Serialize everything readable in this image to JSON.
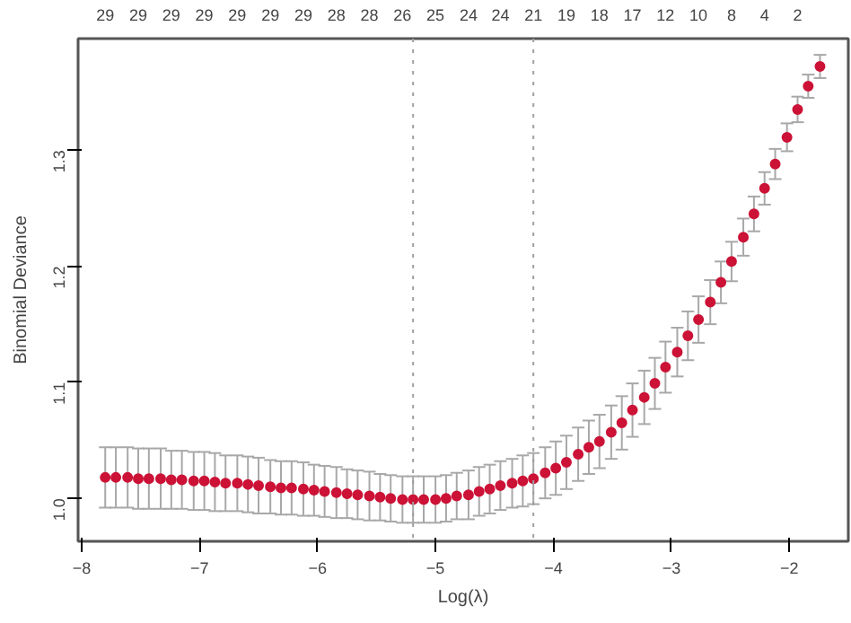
{
  "chart_data": {
    "type": "scatter",
    "xlabel": "Log(λ)",
    "ylabel": "Binomial Deviance",
    "x": [
      -7.8,
      -7.71,
      -7.61,
      -7.52,
      -7.43,
      -7.33,
      -7.24,
      -7.15,
      -7.05,
      -6.96,
      -6.87,
      -6.78,
      -6.68,
      -6.59,
      -6.5,
      -6.4,
      -6.31,
      -6.22,
      -6.12,
      -6.03,
      -5.94,
      -5.84,
      -5.75,
      -5.66,
      -5.56,
      -5.47,
      -5.38,
      -5.28,
      -5.19,
      -5.1,
      -5.0,
      -4.91,
      -4.82,
      -4.72,
      -4.63,
      -4.54,
      -4.45,
      -4.35,
      -4.26,
      -4.17,
      -4.07,
      -3.98,
      -3.89,
      -3.79,
      -3.7,
      -3.61,
      -3.51,
      -3.42,
      -3.33,
      -3.23,
      -3.14,
      -3.05,
      -2.95,
      -2.86,
      -2.77,
      -2.67,
      -2.58,
      -2.49,
      -2.39,
      -2.3,
      -2.21,
      -2.12,
      -2.02,
      -1.93,
      -1.84,
      -1.74
    ],
    "series": [
      {
        "color": "#cc1236",
        "values": [
          1.018,
          1.018,
          1.018,
          1.017,
          1.017,
          1.017,
          1.016,
          1.016,
          1.015,
          1.015,
          1.014,
          1.013,
          1.013,
          1.012,
          1.011,
          1.01,
          1.009,
          1.009,
          1.008,
          1.007,
          1.006,
          1.005,
          1.004,
          1.003,
          1.002,
          1.001,
          1.0,
          0.999,
          0.999,
          0.999,
          0.999,
          1.0,
          1.002,
          1.003,
          1.006,
          1.008,
          1.011,
          1.013,
          1.015,
          1.017,
          1.022,
          1.026,
          1.031,
          1.038,
          1.044,
          1.049,
          1.057,
          1.065,
          1.076,
          1.087,
          1.099,
          1.113,
          1.126,
          1.14,
          1.154,
          1.169,
          1.186,
          1.204,
          1.225,
          1.245,
          1.267,
          1.288,
          1.311,
          1.335,
          1.355,
          1.372
        ],
        "errors": [
          0.026,
          0.026,
          0.026,
          0.026,
          0.026,
          0.026,
          0.025,
          0.025,
          0.025,
          0.025,
          0.025,
          0.024,
          0.024,
          0.024,
          0.024,
          0.023,
          0.023,
          0.023,
          0.023,
          0.022,
          0.022,
          0.022,
          0.021,
          0.021,
          0.021,
          0.02,
          0.02,
          0.02,
          0.02,
          0.02,
          0.02,
          0.02,
          0.02,
          0.021,
          0.021,
          0.021,
          0.021,
          0.021,
          0.022,
          0.022,
          0.022,
          0.023,
          0.023,
          0.023,
          0.023,
          0.023,
          0.023,
          0.023,
          0.023,
          0.023,
          0.022,
          0.022,
          0.021,
          0.021,
          0.02,
          0.019,
          0.018,
          0.017,
          0.016,
          0.015,
          0.014,
          0.013,
          0.012,
          0.011,
          0.01,
          0.01
        ]
      }
    ],
    "marker": "circle",
    "xlim": [
      -8.03,
      -1.5
    ],
    "ylim": [
      0.963,
      1.396
    ],
    "xticks": [
      -8,
      -7,
      -6,
      -5,
      -4,
      -3,
      -2
    ],
    "yticks": [
      {
        "value": 1.0,
        "label": "1.0"
      },
      {
        "value": 1.1,
        "label": "1.1"
      },
      {
        "value": 1.2,
        "label": "1.2"
      },
      {
        "value": 1.3,
        "label": "1.3"
      }
    ],
    "annotations": [
      "29",
      "29",
      "29",
      "29",
      "29",
      "29",
      "29",
      "28",
      "28",
      "26",
      "25",
      "24",
      "24",
      "21",
      "19",
      "18",
      "17",
      "12",
      "10",
      "8",
      "4",
      "2"
    ],
    "ref_lines": [
      {
        "axis": "x",
        "value": -5.19,
        "color": "#a0a0a0",
        "line_style": "dotted"
      },
      {
        "axis": "x",
        "value": -4.17,
        "color": "#a0a0a0",
        "line_style": "dotted"
      }
    ],
    "grid": false
  }
}
